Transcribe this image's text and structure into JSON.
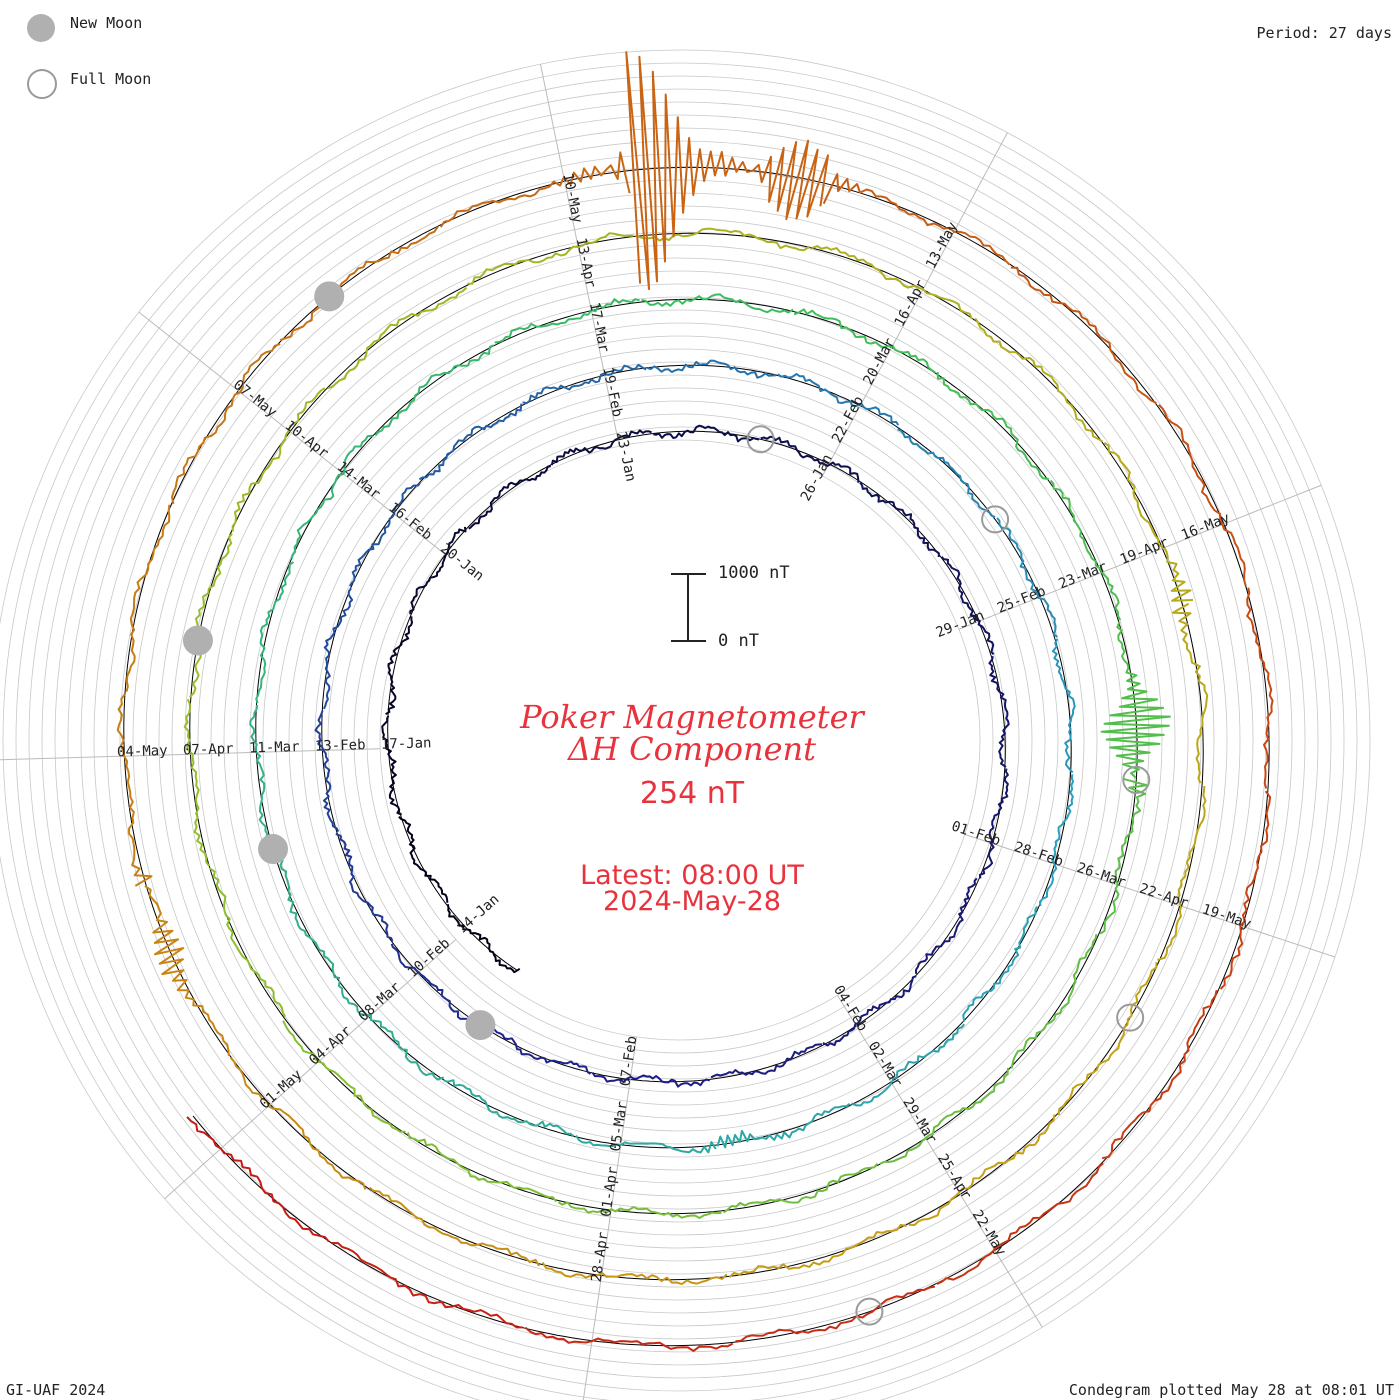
{
  "legend": {
    "new_moon": "New Moon",
    "full_moon": "Full Moon"
  },
  "period": "Period: 27 days",
  "title_line1": "Poker Magnetometer",
  "title_line2": "ΔH Component",
  "current_value": "254 nT",
  "latest_time": "Latest: 08:00 UT",
  "latest_date": "2024-May-28",
  "credit": "GI-UAF 2024",
  "plotted": "Condegram plotted May 28 at 08:01 UT",
  "scale": {
    "top_label": "1000 nT",
    "bottom_label": "0 nT"
  },
  "colors": {
    "title": "#e8323c",
    "grid": "#c8c8c8",
    "moon_new": "#b0b0b0",
    "moon_full": "#9a9a9a"
  },
  "chart_data": {
    "type": "spiral-line",
    "period_days": 27,
    "start_date": "2024-01-13",
    "end_date": "2024-05-28",
    "units": "nT",
    "scale_nT": [
      0,
      1000
    ],
    "date_labels": [
      {
        "label": "14-Jan"
      },
      {
        "label": "17-Jan"
      },
      {
        "label": "20-Jan"
      },
      {
        "label": "23-Jan"
      },
      {
        "label": "26-Jan"
      },
      {
        "label": "29-Jan"
      },
      {
        "label": "01-Feb"
      },
      {
        "label": "04-Feb"
      },
      {
        "label": "07-Feb"
      },
      {
        "label": "10-Feb"
      },
      {
        "label": "13-Feb"
      },
      {
        "label": "16-Feb"
      },
      {
        "label": "19-Feb"
      },
      {
        "label": "22-Feb"
      },
      {
        "label": "25-Feb"
      },
      {
        "label": "28-Feb"
      },
      {
        "label": "02-Mar"
      },
      {
        "label": "05-Mar"
      },
      {
        "label": "08-Mar"
      },
      {
        "label": "11-Mar"
      },
      {
        "label": "14-Mar"
      },
      {
        "label": "17-Mar"
      },
      {
        "label": "20-Mar"
      },
      {
        "label": "23-Mar"
      },
      {
        "label": "26-Mar"
      },
      {
        "label": "29-Mar"
      },
      {
        "label": "01-Apr"
      },
      {
        "label": "04-Apr"
      },
      {
        "label": "07-Apr"
      },
      {
        "label": "10-Apr"
      },
      {
        "label": "13-Apr"
      },
      {
        "label": "16-Apr"
      },
      {
        "label": "19-Apr"
      },
      {
        "label": "22-Apr"
      },
      {
        "label": "25-Apr"
      },
      {
        "label": "28-Apr"
      },
      {
        "label": "01-May"
      },
      {
        "label": "04-May"
      },
      {
        "label": "07-May"
      },
      {
        "label": "10-May"
      },
      {
        "label": "13-May"
      },
      {
        "label": "16-May"
      },
      {
        "label": "19-May"
      },
      {
        "label": "22-May"
      }
    ],
    "new_moons": [
      "2024-02-09",
      "2024-03-10",
      "2024-04-08",
      "2024-05-08"
    ],
    "full_moons": [
      "2024-01-25",
      "2024-02-24",
      "2024-03-25",
      "2024-04-23",
      "2024-05-23"
    ],
    "disturbances": [
      {
        "date": "2024-03-03",
        "peak_nT": 350
      },
      {
        "date": "2024-03-24",
        "peak_nT": 700
      },
      {
        "date": "2024-04-19",
        "peak_nT": 250
      },
      {
        "date": "2024-05-10",
        "peak_nT": 1900
      },
      {
        "date": "2024-05-11",
        "peak_nT": 1500
      },
      {
        "date": "2024-05-02",
        "peak_nT": 500
      }
    ]
  }
}
